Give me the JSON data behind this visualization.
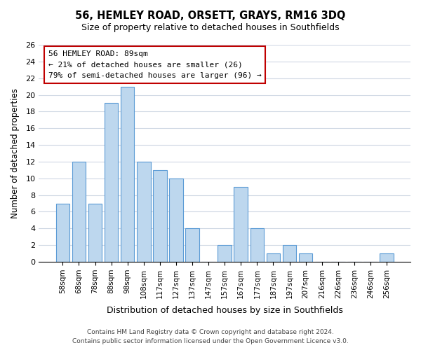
{
  "title": "56, HEMLEY ROAD, ORSETT, GRAYS, RM16 3DQ",
  "subtitle": "Size of property relative to detached houses in Southfields",
  "xlabel": "Distribution of detached houses by size in Southfields",
  "ylabel": "Number of detached properties",
  "bar_labels": [
    "58sqm",
    "68sqm",
    "78sqm",
    "88sqm",
    "98sqm",
    "108sqm",
    "117sqm",
    "127sqm",
    "137sqm",
    "147sqm",
    "157sqm",
    "167sqm",
    "177sqm",
    "187sqm",
    "197sqm",
    "207sqm",
    "216sqm",
    "226sqm",
    "236sqm",
    "246sqm",
    "256sqm"
  ],
  "bar_values": [
    7,
    12,
    7,
    19,
    21,
    12,
    11,
    10,
    4,
    0,
    2,
    9,
    4,
    1,
    2,
    1,
    0,
    0,
    0,
    0,
    1
  ],
  "bar_color": "#bdd7ee",
  "bar_edge_color": "#5b9bd5",
  "annotation_title": "56 HEMLEY ROAD: 89sqm",
  "annotation_line1": "← 21% of detached houses are smaller (26)",
  "annotation_line2": "79% of semi-detached houses are larger (96) →",
  "annotation_box_color": "#ffffff",
  "annotation_box_edge_color": "#c00000",
  "ylim": [
    0,
    26
  ],
  "yticks": [
    0,
    2,
    4,
    6,
    8,
    10,
    12,
    14,
    16,
    18,
    20,
    22,
    24,
    26
  ],
  "footer_line1": "Contains HM Land Registry data © Crown copyright and database right 2024.",
  "footer_line2": "Contains public sector information licensed under the Open Government Licence v3.0.",
  "background_color": "#ffffff",
  "grid_color": "#d0d8e4"
}
